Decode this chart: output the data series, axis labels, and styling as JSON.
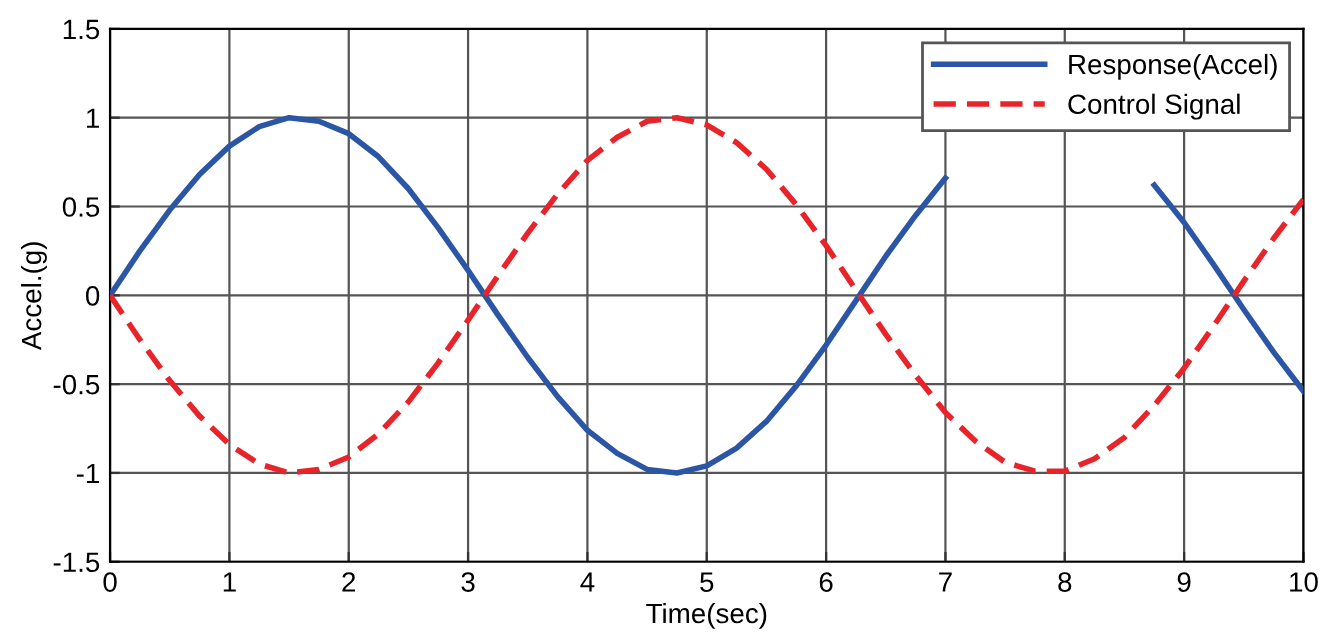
{
  "chart_data": {
    "type": "line",
    "xlabel": "Time(sec)",
    "ylabel": "Accel.(g)",
    "x": [
      0,
      0.25,
      0.5,
      0.75,
      1,
      1.25,
      1.5,
      1.75,
      2,
      2.25,
      2.5,
      2.75,
      3,
      3.25,
      3.5,
      3.75,
      4,
      4.25,
      4.5,
      4.75,
      5,
      5.25,
      5.5,
      5.75,
      6,
      6.25,
      6.5,
      6.75,
      7,
      7.25,
      7.5,
      7.75,
      8,
      8.25,
      8.5,
      8.75,
      9,
      9.25,
      9.5,
      9.75,
      10
    ],
    "series": [
      {
        "name": "Response(Accel)",
        "color": "#2b55a5",
        "line_style": "solid",
        "values": [
          0,
          0.25,
          0.48,
          0.68,
          0.84,
          0.95,
          1.0,
          0.98,
          0.91,
          0.78,
          0.6,
          0.38,
          0.14,
          -0.11,
          -0.35,
          -0.57,
          -0.76,
          -0.89,
          -0.98,
          -1.0,
          -0.96,
          -0.86,
          -0.71,
          -0.51,
          -0.28,
          -0.03,
          0.22,
          0.45,
          0.66,
          null,
          null,
          null,
          null,
          null,
          null,
          0.62,
          0.41,
          0.17,
          -0.08,
          -0.32,
          -0.54
        ]
      },
      {
        "name": "Control Signal",
        "color": "#e8242b",
        "line_style": "dashed",
        "values": [
          0,
          -0.25,
          -0.48,
          -0.68,
          -0.84,
          -0.95,
          -1.0,
          -0.98,
          -0.91,
          -0.78,
          -0.6,
          -0.38,
          -0.14,
          0.11,
          0.35,
          0.57,
          0.76,
          0.89,
          0.98,
          1.0,
          0.96,
          0.86,
          0.71,
          0.51,
          0.28,
          0.03,
          -0.22,
          -0.45,
          -0.66,
          -0.82,
          -0.94,
          -0.99,
          -0.99,
          -0.92,
          -0.8,
          -0.62,
          -0.41,
          -0.17,
          0.08,
          0.32,
          0.54
        ]
      }
    ],
    "xlim": [
      0,
      10
    ],
    "xticks": [
      0,
      1,
      2,
      3,
      4,
      5,
      6,
      7,
      8,
      9,
      10
    ],
    "ylim": [
      -1.5,
      1.5
    ],
    "yticks": [
      -1.5,
      -1,
      -0.5,
      0,
      0.5,
      1,
      1.5
    ],
    "grid": true,
    "legend": "top right",
    "marker": "none"
  }
}
